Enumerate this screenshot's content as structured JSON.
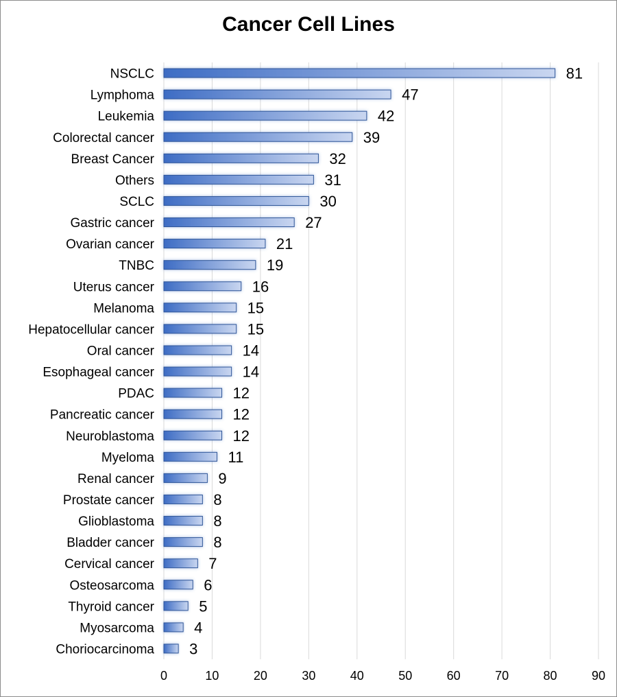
{
  "chart_data": {
    "type": "bar",
    "orientation": "horizontal",
    "title": "Cancer Cell Lines",
    "xlabel": "",
    "ylabel": "",
    "xlim": [
      0,
      90
    ],
    "x_ticks": [
      0,
      10,
      20,
      30,
      40,
      50,
      60,
      70,
      80,
      90
    ],
    "grid": "vertical",
    "legend": "none",
    "categories": [
      "NSCLC",
      "Lymphoma",
      "Leukemia",
      "Colorectal cancer",
      "Breast Cancer",
      "Others",
      "SCLC",
      "Gastric cancer",
      "Ovarian cancer",
      "TNBC",
      "Uterus cancer",
      "Melanoma",
      "Hepatocellular cancer",
      "Oral cancer",
      "Esophageal cancer",
      "PDAC",
      "Pancreatic cancer",
      "Neuroblastoma",
      "Myeloma",
      "Renal cancer",
      "Prostate cancer",
      "Glioblastoma",
      "Bladder cancer",
      "Cervical cancer",
      "Osteosarcoma",
      "Thyroid cancer",
      "Myosarcoma",
      "Choriocarcinoma"
    ],
    "values": [
      81,
      47,
      42,
      39,
      32,
      31,
      30,
      27,
      21,
      19,
      16,
      15,
      15,
      14,
      14,
      12,
      12,
      12,
      11,
      9,
      8,
      8,
      8,
      7,
      6,
      5,
      4,
      3
    ],
    "colors": {
      "bar_dark": "#3d6cc4",
      "bar_light": "#c9d6f0",
      "bar_border": "#2f5597",
      "grid": "#d9d9d9"
    }
  }
}
